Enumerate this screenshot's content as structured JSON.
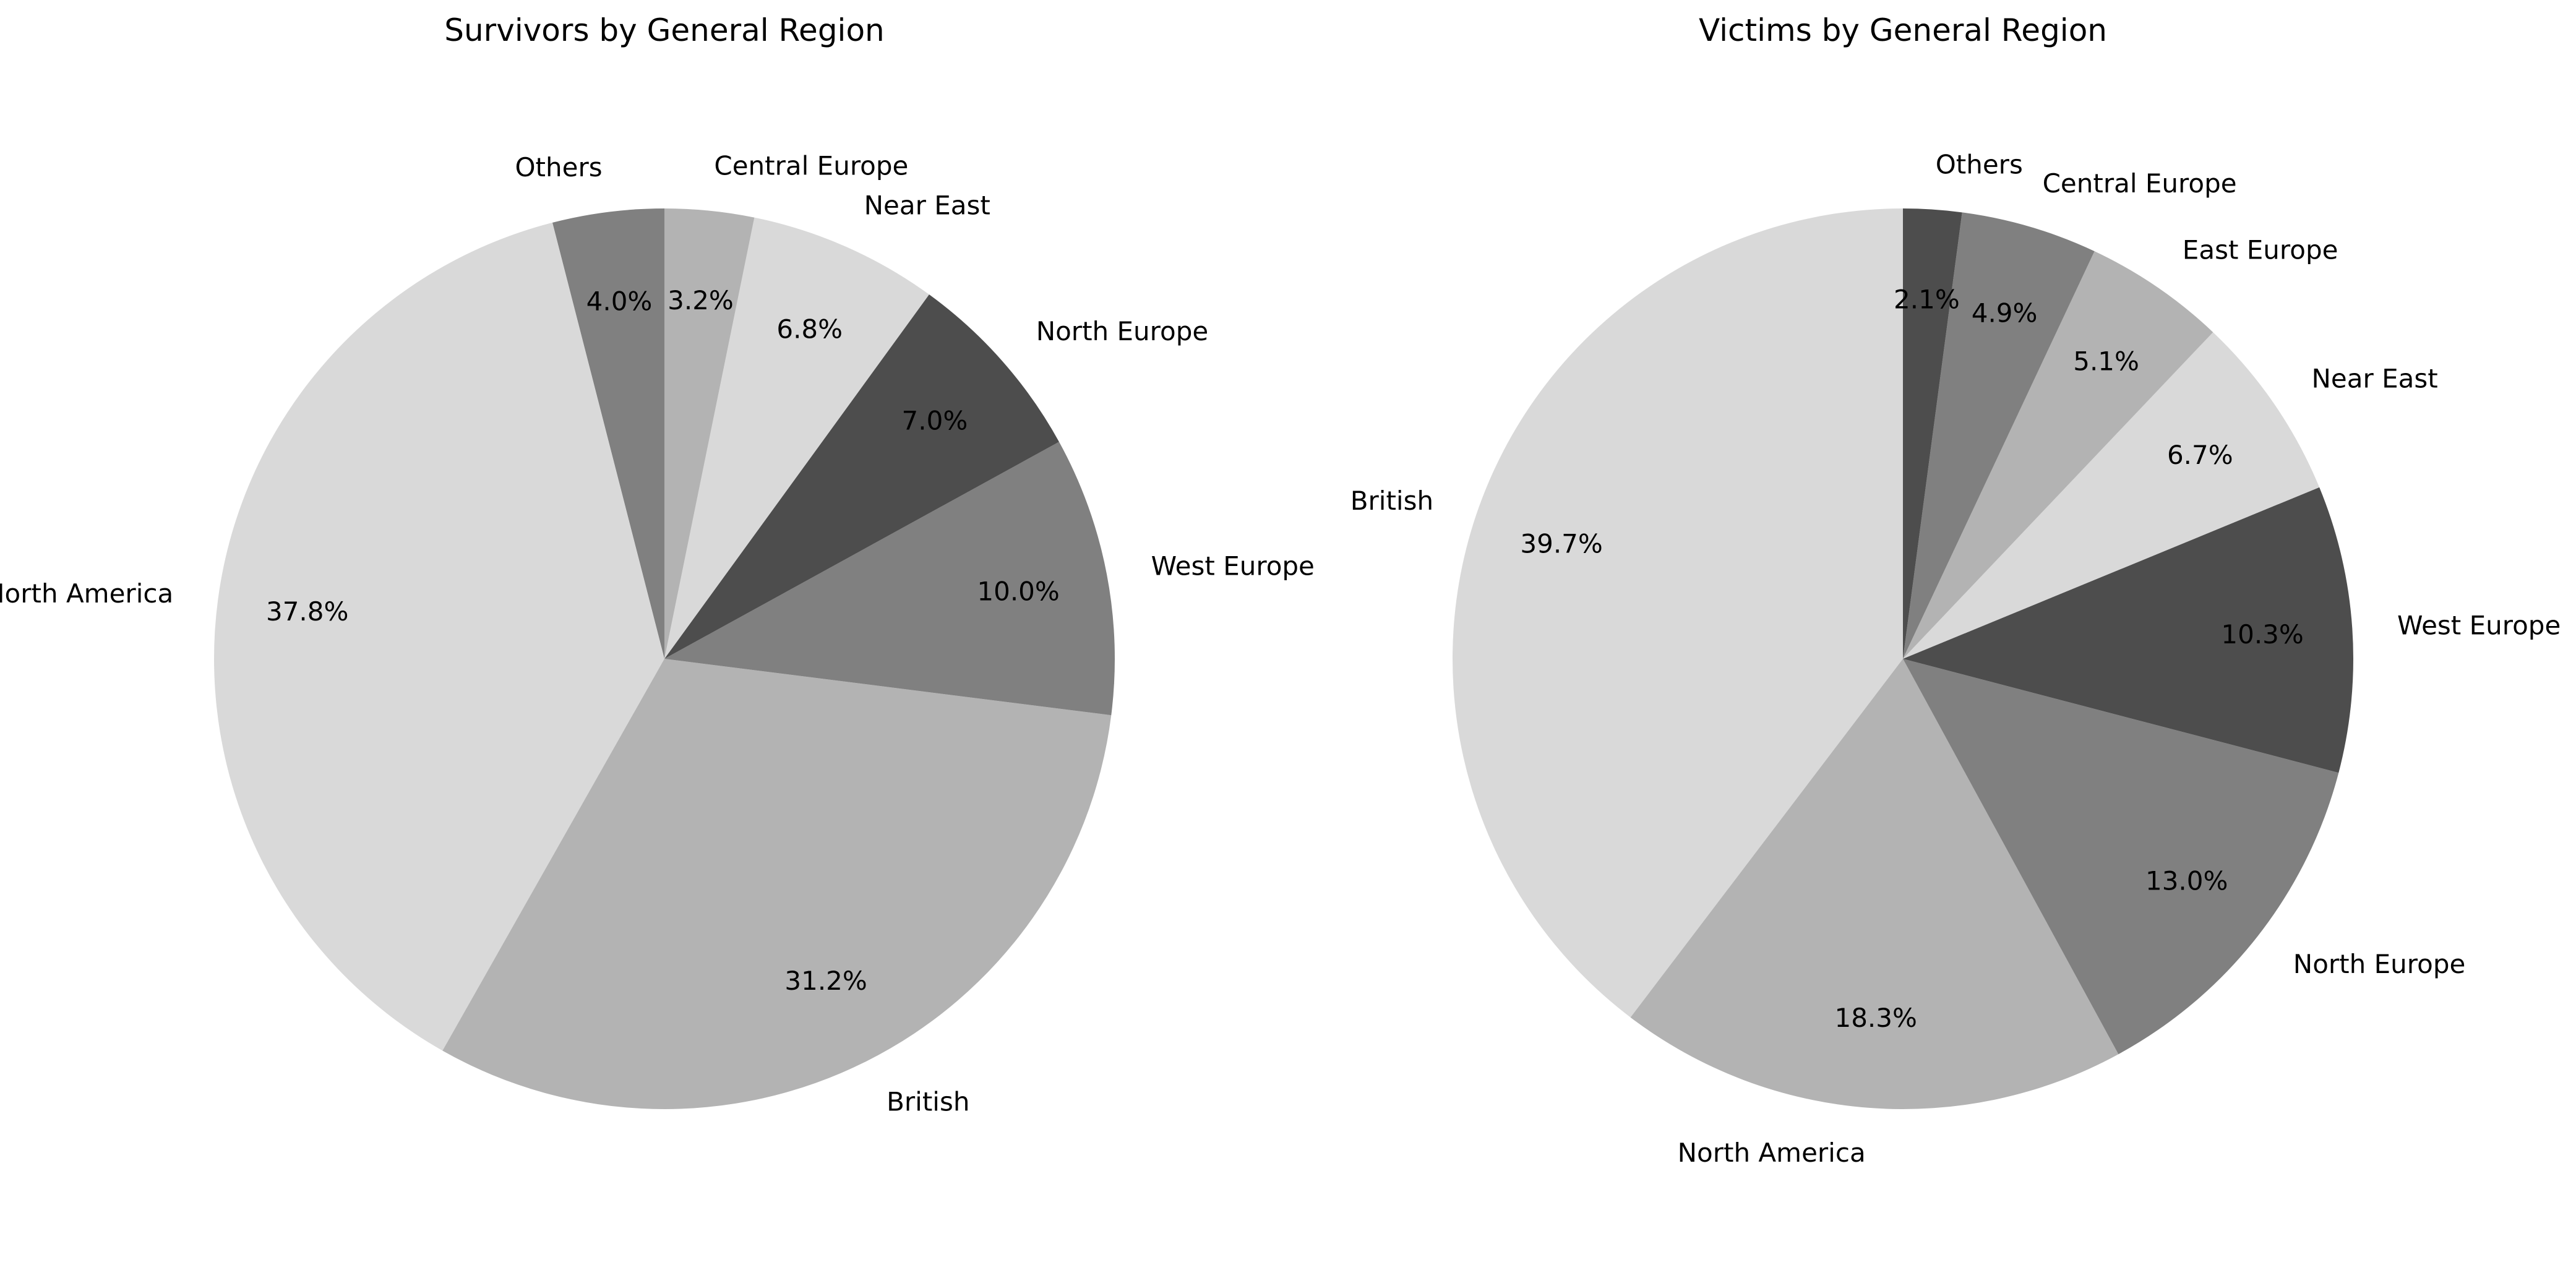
{
  "chart_data": [
    {
      "type": "pie",
      "title": "Survivors by General Region",
      "start_angle": 90,
      "direction": "counterclockwise",
      "slices": [
        {
          "label": "Others",
          "value": 4.0,
          "pct_label": "4.0%",
          "color": "#808080"
        },
        {
          "label": "North America",
          "value": 37.8,
          "pct_label": "37.8%",
          "color": "#d9d9d9"
        },
        {
          "label": "British",
          "value": 31.2,
          "pct_label": "31.2%",
          "color": "#b3b3b3"
        },
        {
          "label": "West Europe",
          "value": 10.0,
          "pct_label": "10.0%",
          "color": "#808080"
        },
        {
          "label": "North Europe",
          "value": 7.0,
          "pct_label": "7.0%",
          "color": "#4d4d4d"
        },
        {
          "label": "Near East",
          "value": 6.8,
          "pct_label": "6.8%",
          "color": "#d9d9d9"
        },
        {
          "label": "Central Europe",
          "value": 3.2,
          "pct_label": "3.2%",
          "color": "#b3b3b3"
        }
      ]
    },
    {
      "type": "pie",
      "title": "Victims by General Region",
      "start_angle": 90,
      "direction": "counterclockwise",
      "slices": [
        {
          "label": "British",
          "value": 39.7,
          "pct_label": "39.7%",
          "color": "#d9d9d9"
        },
        {
          "label": "North America",
          "value": 18.3,
          "pct_label": "18.3%",
          "color": "#b3b3b3"
        },
        {
          "label": "North Europe",
          "value": 13.0,
          "pct_label": "13.0%",
          "color": "#808080"
        },
        {
          "label": "West Europe",
          "value": 10.3,
          "pct_label": "10.3%",
          "color": "#4d4d4d"
        },
        {
          "label": "Near East",
          "value": 6.7,
          "pct_label": "6.7%",
          "color": "#d9d9d9"
        },
        {
          "label": "East Europe",
          "value": 5.1,
          "pct_label": "5.1%",
          "color": "#b3b3b3"
        },
        {
          "label": "Central Europe",
          "value": 4.9,
          "pct_label": "4.9%",
          "color": "#808080"
        },
        {
          "label": "Others",
          "value": 2.1,
          "pct_label": "2.1%",
          "color": "#4d4d4d"
        }
      ]
    }
  ]
}
